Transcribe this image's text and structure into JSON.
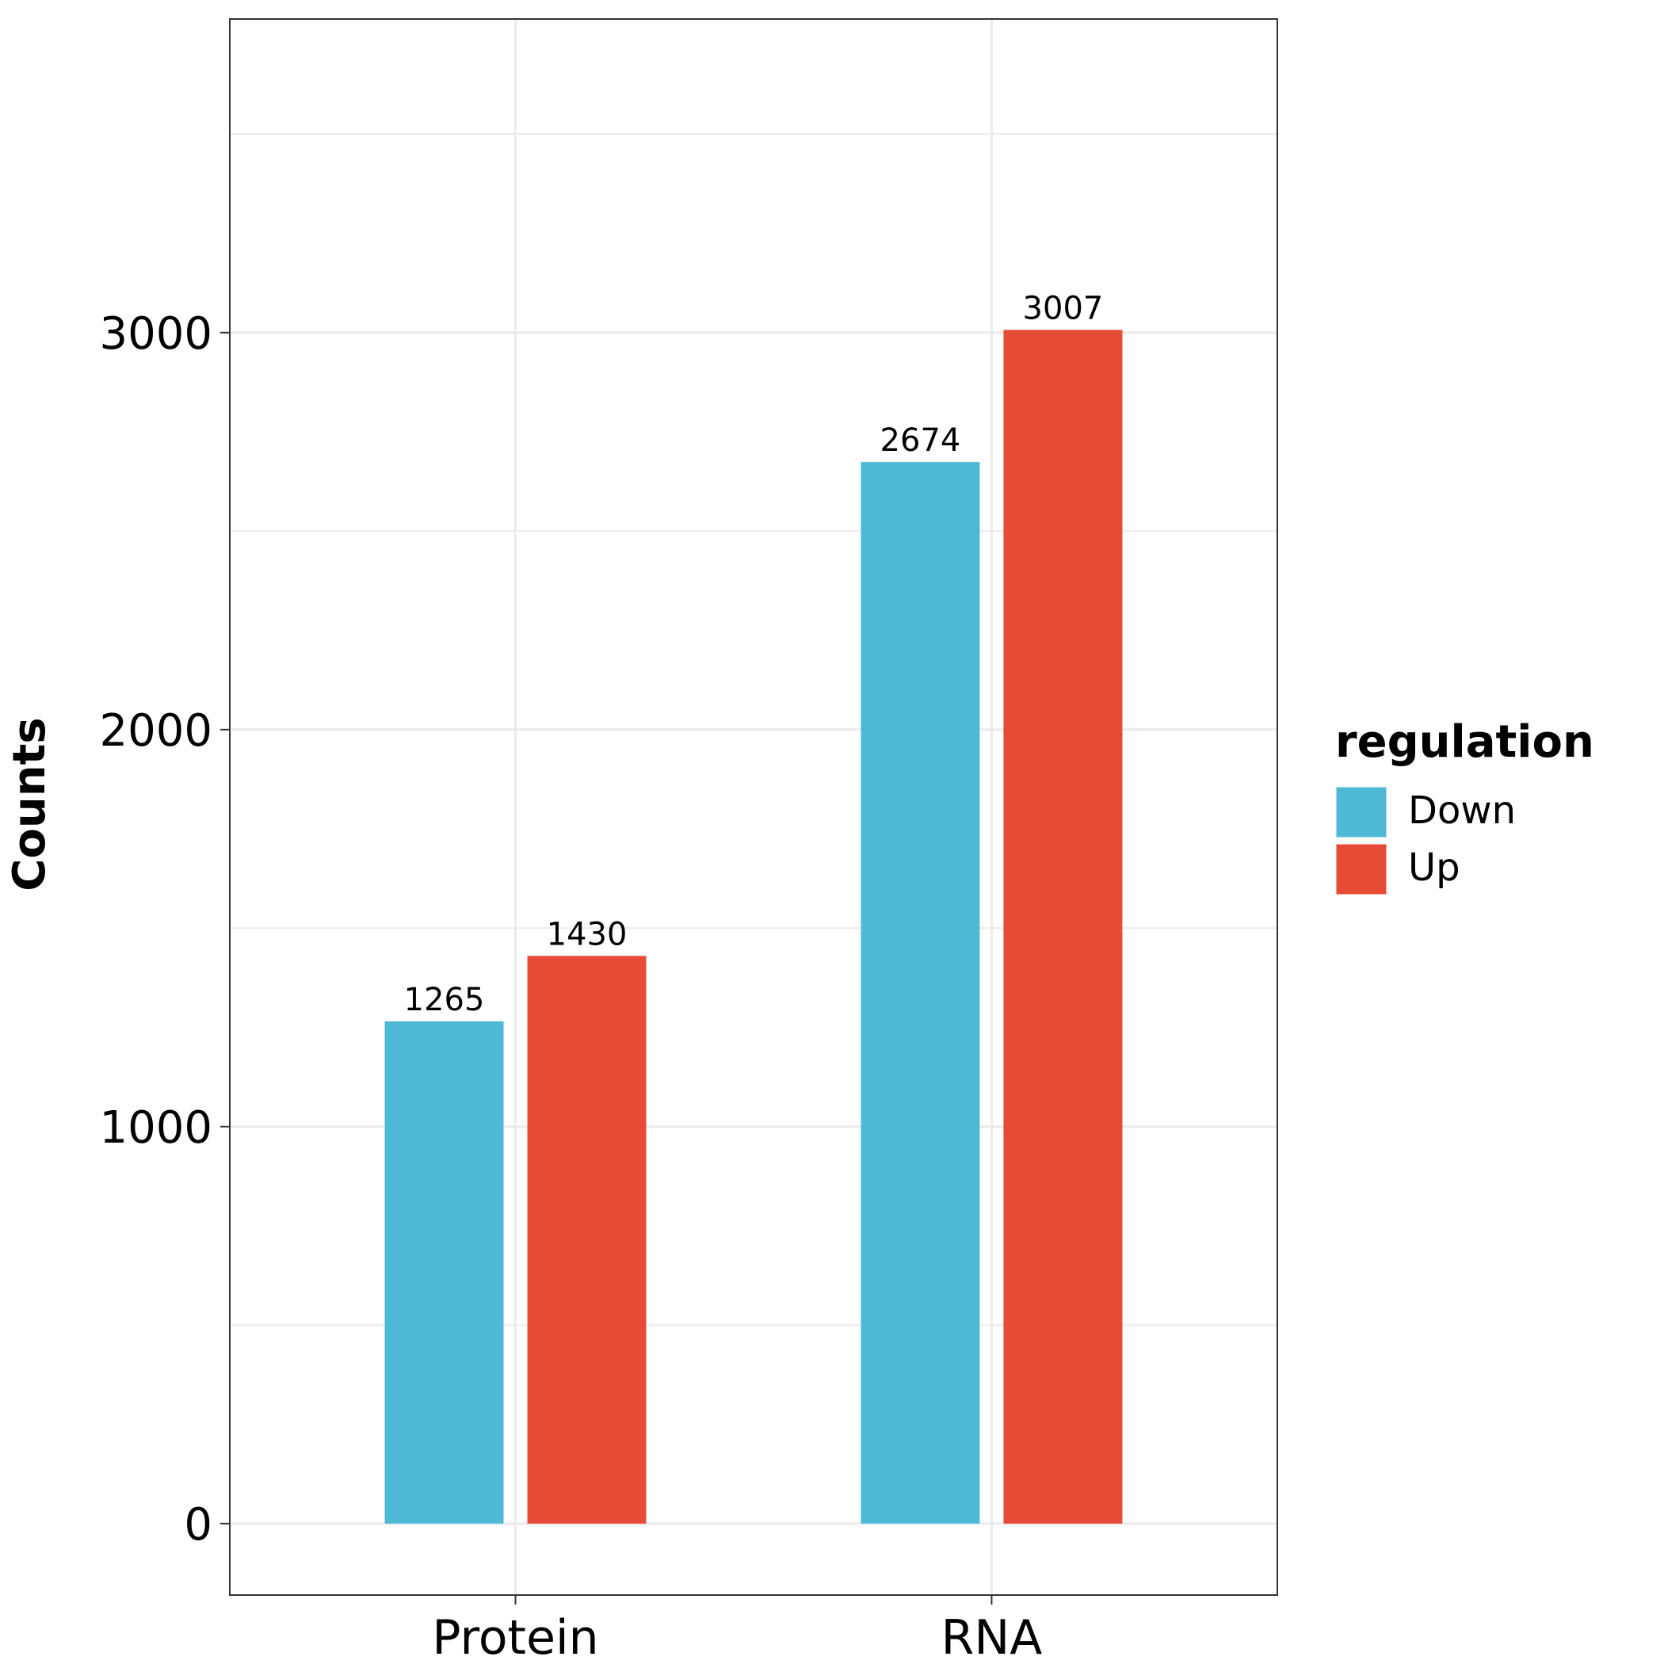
{
  "chart_data": {
    "type": "bar",
    "categories": [
      "Protein",
      "RNA"
    ],
    "series": [
      {
        "name": "Down",
        "values": [
          1265,
          2674
        ],
        "color": "#4EB9D4"
      },
      {
        "name": "Up",
        "values": [
          1430,
          3007
        ],
        "color": "#E64B36"
      }
    ],
    "data_labels": [
      [
        "1265",
        "2674"
      ],
      [
        "1430",
        "3007"
      ]
    ],
    "xlabel": "",
    "ylabel": "Counts",
    "ylim": [
      -180,
      3790
    ],
    "yticks": [
      0,
      1000,
      2000,
      3000
    ],
    "ytick_labels": [
      "0",
      "1000",
      "2000",
      "3000"
    ],
    "legend": {
      "title": "regulation",
      "placement": "right"
    },
    "grid": true
  }
}
